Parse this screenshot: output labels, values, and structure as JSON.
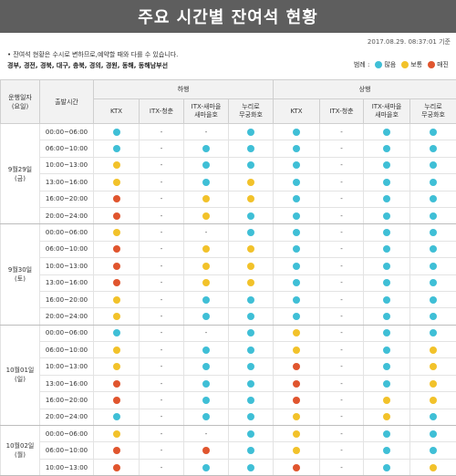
{
  "title": "주요 시간별 잔여석 현황",
  "timestamp": "2017.08.29. 08:37:01 기준",
  "notice_line1": "• 잔여석 현황은 수시로 변하므로,예약할 때와 다를 수 있습니다.",
  "notice_line2": "경부, 경전, 경북, 대구, 충북, 경의, 경원, 동해, 동해남부선",
  "legend": {
    "label": "범례 :",
    "items": [
      {
        "key": "many",
        "label": "많음",
        "color": "#3fbfd6"
      },
      {
        "key": "normal",
        "label": "보통",
        "color": "#f2c22a"
      },
      {
        "key": "few",
        "label": "매진",
        "color": "#e0552e"
      }
    ]
  },
  "headers": {
    "date_col": "운행일자\n(요일)",
    "time_col": "출발시간",
    "down": "하행",
    "up": "상행",
    "trains": [
      "KTX",
      "ITX-청춘",
      "ITX-새마을\n새마을호",
      "누리로\n무궁화호"
    ]
  },
  "days": [
    {
      "date": "9월29일\n(금)",
      "rows": [
        {
          "time": "00:00~06:00",
          "down": [
            "many",
            "-",
            "-",
            "many"
          ],
          "up": [
            "many",
            "-",
            "many",
            "many"
          ]
        },
        {
          "time": "06:00~10:00",
          "down": [
            "many",
            "-",
            "many",
            "many"
          ],
          "up": [
            "many",
            "-",
            "many",
            "many"
          ]
        },
        {
          "time": "10:00~13:00",
          "down": [
            "normal",
            "-",
            "many",
            "many"
          ],
          "up": [
            "many",
            "-",
            "many",
            "many"
          ]
        },
        {
          "time": "13:00~16:00",
          "down": [
            "normal",
            "-",
            "many",
            "normal"
          ],
          "up": [
            "many",
            "-",
            "many",
            "many"
          ]
        },
        {
          "time": "16:00~20:00",
          "down": [
            "few",
            "-",
            "normal",
            "normal"
          ],
          "up": [
            "many",
            "-",
            "many",
            "many"
          ]
        },
        {
          "time": "20:00~24:00",
          "down": [
            "few",
            "-",
            "normal",
            "many"
          ],
          "up": [
            "many",
            "-",
            "many",
            "many"
          ]
        }
      ]
    },
    {
      "date": "9월30일\n(토)",
      "rows": [
        {
          "time": "00:00~06:00",
          "down": [
            "normal",
            "-",
            "-",
            "many"
          ],
          "up": [
            "many",
            "-",
            "many",
            "many"
          ]
        },
        {
          "time": "06:00~10:00",
          "down": [
            "few",
            "-",
            "normal",
            "normal"
          ],
          "up": [
            "many",
            "-",
            "many",
            "many"
          ]
        },
        {
          "time": "10:00~13:00",
          "down": [
            "few",
            "-",
            "normal",
            "normal"
          ],
          "up": [
            "many",
            "-",
            "many",
            "many"
          ]
        },
        {
          "time": "13:00~16:00",
          "down": [
            "few",
            "-",
            "normal",
            "normal"
          ],
          "up": [
            "many",
            "-",
            "many",
            "many"
          ]
        },
        {
          "time": "16:00~20:00",
          "down": [
            "normal",
            "-",
            "many",
            "many"
          ],
          "up": [
            "many",
            "-",
            "many",
            "many"
          ]
        },
        {
          "time": "20:00~24:00",
          "down": [
            "normal",
            "-",
            "many",
            "many"
          ],
          "up": [
            "many",
            "-",
            "many",
            "many"
          ]
        }
      ]
    },
    {
      "date": "10월01일\n(일)",
      "rows": [
        {
          "time": "00:00~06:00",
          "down": [
            "many",
            "-",
            "-",
            "many"
          ],
          "up": [
            "normal",
            "-",
            "many",
            "many"
          ]
        },
        {
          "time": "06:00~10:00",
          "down": [
            "normal",
            "-",
            "many",
            "many"
          ],
          "up": [
            "normal",
            "-",
            "many",
            "normal"
          ]
        },
        {
          "time": "10:00~13:00",
          "down": [
            "normal",
            "-",
            "many",
            "many"
          ],
          "up": [
            "few",
            "-",
            "many",
            "normal"
          ]
        },
        {
          "time": "13:00~16:00",
          "down": [
            "few",
            "-",
            "many",
            "many"
          ],
          "up": [
            "few",
            "-",
            "many",
            "normal"
          ]
        },
        {
          "time": "16:00~20:00",
          "down": [
            "few",
            "-",
            "many",
            "many"
          ],
          "up": [
            "few",
            "-",
            "normal",
            "normal"
          ]
        },
        {
          "time": "20:00~24:00",
          "down": [
            "many",
            "-",
            "many",
            "many"
          ],
          "up": [
            "normal",
            "-",
            "normal",
            "many"
          ]
        }
      ]
    },
    {
      "date": "10월02일\n(월)",
      "rows": [
        {
          "time": "00:00~06:00",
          "down": [
            "normal",
            "-",
            "-",
            "many"
          ],
          "up": [
            "normal",
            "-",
            "many",
            "many"
          ]
        },
        {
          "time": "06:00~10:00",
          "down": [
            "few",
            "-",
            "few",
            "many"
          ],
          "up": [
            "normal",
            "-",
            "many",
            "many"
          ]
        },
        {
          "time": "10:00~13:00",
          "down": [
            "few",
            "-",
            "many",
            "many"
          ],
          "up": [
            "few",
            "-",
            "many",
            "normal"
          ]
        }
      ]
    }
  ]
}
